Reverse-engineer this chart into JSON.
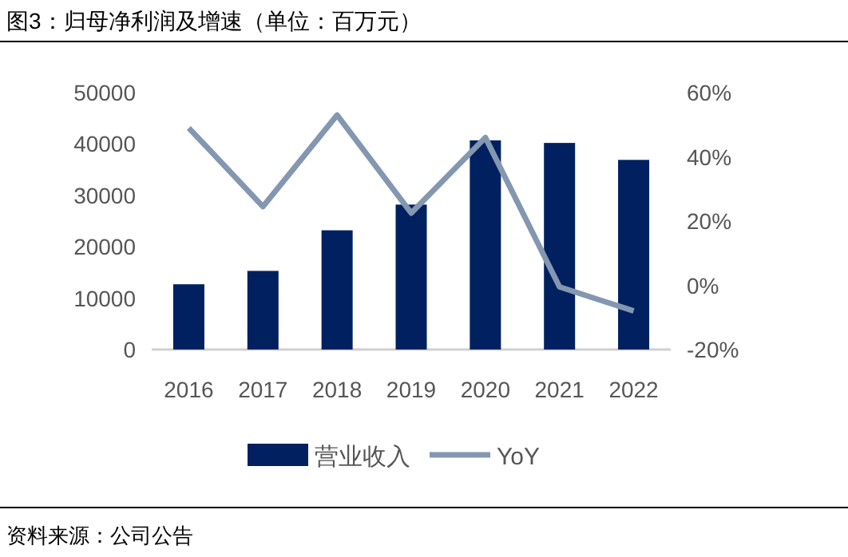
{
  "chart_data": {
    "type": "bar",
    "title": "图3：归母净利润及增速（单位：百万元）",
    "categories": [
      "2016",
      "2017",
      "2018",
      "2019",
      "2020",
      "2021",
      "2022"
    ],
    "series": [
      {
        "name": "营业收入",
        "color": "#002060",
        "values": [
          12700,
          15300,
          23200,
          28200,
          40700,
          40200,
          36900
        ]
      },
      {
        "name": "YoY",
        "color": "#8497b0",
        "type": "line",
        "axis": "y2",
        "values": [
          49,
          24.5,
          53,
          22.5,
          46,
          -0.5,
          -8
        ]
      }
    ],
    "ylim": [
      0,
      50000
    ],
    "yticks": [
      0,
      10000,
      20000,
      30000,
      40000,
      50000
    ],
    "y2lim": [
      -20,
      60
    ],
    "y2ticks": [
      {
        "value": -20,
        "label": "-20%"
      },
      {
        "value": 0,
        "label": "0%"
      },
      {
        "value": 20,
        "label": "20%"
      },
      {
        "value": 40,
        "label": "40%"
      },
      {
        "value": 60,
        "label": "60%"
      }
    ],
    "grid": false,
    "legend": "bottom",
    "marker": "none",
    "annotations": [
      "资料来源：公司公告"
    ]
  }
}
